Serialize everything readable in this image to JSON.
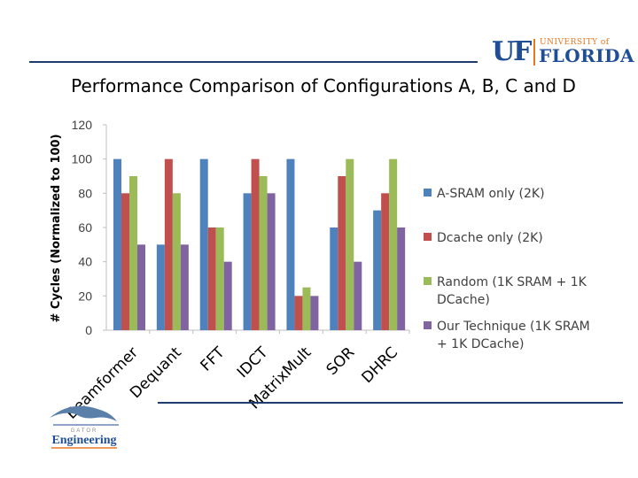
{
  "header": {
    "logo_mark": "UF",
    "logo_university": "UNIVERSITY of",
    "logo_name": "FLORIDA"
  },
  "footer": {
    "logo_top": "GATOR",
    "logo_name": "Engineering"
  },
  "colors": {
    "rule": "#1f3b70",
    "series": [
      "#4f81bd",
      "#c0504d",
      "#9bbb59",
      "#8064a2"
    ]
  },
  "chart_data": {
    "type": "bar",
    "title": "Performance Comparison of Configurations A, B, C and D",
    "ylabel": "# Cycles (Normalized to 100)",
    "xlabel": "",
    "ylim": [
      0,
      120
    ],
    "yticks": [
      0,
      20,
      40,
      60,
      80,
      100,
      120
    ],
    "grid": false,
    "legend": "right",
    "categories": [
      "Beamformer",
      "Dequant",
      "FFT",
      "IDCT",
      "MatrixMult",
      "SOR",
      "DHRC"
    ],
    "series": [
      {
        "name": "A-SRAM only (2K)",
        "values": [
          100,
          50,
          100,
          80,
          100,
          60,
          70
        ]
      },
      {
        "name": "Dcache only (2K)",
        "values": [
          80,
          100,
          60,
          100,
          20,
          90,
          80
        ]
      },
      {
        "name": "Random (1K SRAM + 1K DCache)",
        "values": [
          90,
          80,
          60,
          90,
          25,
          100,
          100
        ]
      },
      {
        "name": "Our Technique (1K SRAM + 1K DCache)",
        "values": [
          50,
          50,
          40,
          80,
          20,
          40,
          60
        ]
      }
    ]
  }
}
